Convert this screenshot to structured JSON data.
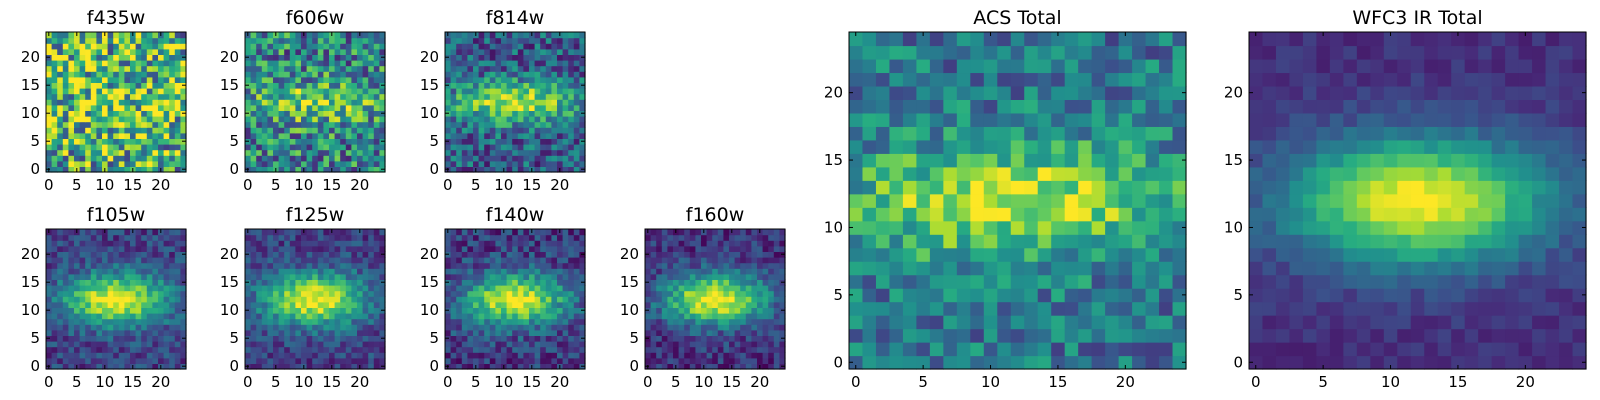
{
  "figure": {
    "colormap": "viridis",
    "colors": {
      "low": "#440154",
      "mid": "#21908d",
      "high": "#fde725"
    }
  },
  "chart_data": [
    {
      "type": "heatmap",
      "title": "f435w",
      "grid_size": 25,
      "x_ticks": [
        0,
        5,
        10,
        15,
        20
      ],
      "y_ticks": [
        0,
        5,
        10,
        15,
        20
      ],
      "xlim": [
        0,
        24
      ],
      "ylim": [
        0,
        24
      ],
      "profile": {
        "peak_row": 12,
        "sigma_x": 12,
        "sigma_y": 6,
        "background": 0.6,
        "amplitude": 0.15,
        "noise": 0.45,
        "seed": 11
      }
    },
    {
      "type": "heatmap",
      "title": "f606w",
      "grid_size": 25,
      "x_ticks": [
        0,
        5,
        10,
        15,
        20
      ],
      "y_ticks": [
        0,
        5,
        10,
        15,
        20
      ],
      "xlim": [
        0,
        24
      ],
      "ylim": [
        0,
        24
      ],
      "profile": {
        "peak_row": 12,
        "sigma_x": 9,
        "sigma_y": 2.5,
        "background": 0.45,
        "amplitude": 0.35,
        "noise": 0.35,
        "seed": 23
      }
    },
    {
      "type": "heatmap",
      "title": "f814w",
      "grid_size": 25,
      "x_ticks": [
        0,
        5,
        10,
        15,
        20
      ],
      "y_ticks": [
        0,
        5,
        10,
        15,
        20
      ],
      "xlim": [
        0,
        24
      ],
      "ylim": [
        0,
        24
      ],
      "profile": {
        "peak_row": 12,
        "sigma_x": 8,
        "sigma_y": 2.6,
        "background": 0.3,
        "amplitude": 0.6,
        "noise": 0.25,
        "seed": 37
      }
    },
    {
      "type": "heatmap",
      "title": "f105w",
      "grid_size": 25,
      "x_ticks": [
        0,
        5,
        10,
        15,
        20
      ],
      "y_ticks": [
        0,
        5,
        10,
        15,
        20
      ],
      "xlim": [
        0,
        24
      ],
      "ylim": [
        0,
        24
      ],
      "profile": {
        "peak_row": 12,
        "sigma_x": 6.5,
        "sigma_y": 3.2,
        "background": 0.2,
        "amplitude": 0.8,
        "noise": 0.15,
        "seed": 41
      }
    },
    {
      "type": "heatmap",
      "title": "f125w",
      "grid_size": 25,
      "x_ticks": [
        0,
        5,
        10,
        15,
        20
      ],
      "y_ticks": [
        0,
        5,
        10,
        15,
        20
      ],
      "xlim": [
        0,
        24
      ],
      "ylim": [
        0,
        24
      ],
      "profile": {
        "peak_row": 12,
        "sigma_x": 6.5,
        "sigma_y": 3.2,
        "background": 0.2,
        "amplitude": 0.8,
        "noise": 0.15,
        "seed": 53
      }
    },
    {
      "type": "heatmap",
      "title": "f140w",
      "grid_size": 25,
      "x_ticks": [
        0,
        5,
        10,
        15,
        20
      ],
      "y_ticks": [
        0,
        5,
        10,
        15,
        20
      ],
      "xlim": [
        0,
        24
      ],
      "ylim": [
        0,
        24
      ],
      "profile": {
        "peak_row": 12,
        "sigma_x": 6.5,
        "sigma_y": 3.2,
        "background": 0.18,
        "amplitude": 0.8,
        "noise": 0.17,
        "seed": 67
      }
    },
    {
      "type": "heatmap",
      "title": "f160w",
      "grid_size": 25,
      "x_ticks": [
        0,
        5,
        10,
        15,
        20
      ],
      "y_ticks": [
        0,
        5,
        10,
        15,
        20
      ],
      "xlim": [
        0,
        24
      ],
      "ylim": [
        0,
        24
      ],
      "profile": {
        "peak_row": 12,
        "sigma_x": 6.5,
        "sigma_y": 3.2,
        "background": 0.15,
        "amplitude": 0.85,
        "noise": 0.15,
        "seed": 79
      }
    },
    {
      "type": "heatmap",
      "title": "ACS Total",
      "grid_size": 25,
      "x_ticks": [
        0,
        5,
        10,
        15,
        20
      ],
      "y_ticks": [
        0,
        5,
        10,
        15,
        20
      ],
      "xlim": [
        0,
        24
      ],
      "ylim": [
        0,
        24
      ],
      "profile": {
        "peak_row": 12,
        "sigma_x": 9,
        "sigma_y": 2.8,
        "background": 0.4,
        "amplitude": 0.55,
        "noise": 0.22,
        "seed": 83
      }
    },
    {
      "type": "heatmap",
      "title": "WFC3 IR Total",
      "grid_size": 25,
      "x_ticks": [
        0,
        5,
        10,
        15,
        20
      ],
      "y_ticks": [
        0,
        5,
        10,
        15,
        20
      ],
      "xlim": [
        0,
        24
      ],
      "ylim": [
        0,
        24
      ],
      "profile": {
        "peak_row": 12,
        "sigma_x": 6.8,
        "sigma_y": 3.3,
        "background": 0.14,
        "amplitude": 0.86,
        "noise": 0.06,
        "seed": 97
      }
    }
  ]
}
